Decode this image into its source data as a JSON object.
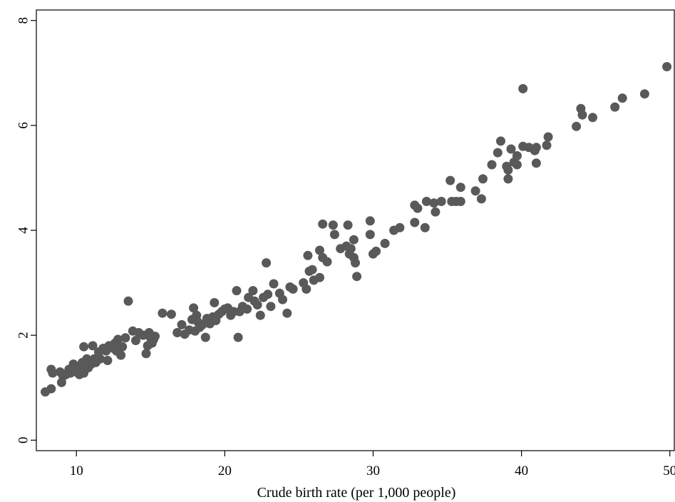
{
  "chart_data": {
    "type": "scatter",
    "title": "",
    "xlabel": "Crude birth rate (per 1,000 people)",
    "ylabel": "",
    "xlim": [
      7.3,
      50.3
    ],
    "ylim": [
      -0.2,
      8.2
    ],
    "xticks": [
      10,
      20,
      30,
      40,
      50
    ],
    "yticks": [
      0,
      2,
      4,
      6,
      8
    ],
    "grid": false,
    "marker_color": "#595959",
    "points": [
      [
        7.9,
        0.92
      ],
      [
        8.3,
        0.98
      ],
      [
        8.3,
        1.35
      ],
      [
        8.4,
        1.28
      ],
      [
        8.9,
        1.3
      ],
      [
        9.0,
        1.1
      ],
      [
        9.1,
        1.22
      ],
      [
        9.3,
        1.25
      ],
      [
        9.5,
        1.35
      ],
      [
        9.6,
        1.28
      ],
      [
        9.8,
        1.45
      ],
      [
        9.9,
        1.38
      ],
      [
        10.0,
        1.3
      ],
      [
        10.1,
        1.4
      ],
      [
        10.2,
        1.25
      ],
      [
        10.3,
        1.35
      ],
      [
        10.4,
        1.48
      ],
      [
        10.5,
        1.28
      ],
      [
        10.5,
        1.78
      ],
      [
        10.6,
        1.42
      ],
      [
        10.7,
        1.55
      ],
      [
        10.8,
        1.38
      ],
      [
        10.9,
        1.5
      ],
      [
        11.0,
        1.45
      ],
      [
        11.1,
        1.8
      ],
      [
        11.2,
        1.55
      ],
      [
        11.3,
        1.48
      ],
      [
        11.5,
        1.68
      ],
      [
        11.6,
        1.55
      ],
      [
        11.8,
        1.75
      ],
      [
        12.0,
        1.7
      ],
      [
        12.1,
        1.52
      ],
      [
        12.2,
        1.8
      ],
      [
        12.5,
        1.75
      ],
      [
        12.6,
        1.85
      ],
      [
        12.7,
        1.7
      ],
      [
        12.8,
        1.92
      ],
      [
        13.0,
        1.62
      ],
      [
        13.1,
        1.78
      ],
      [
        13.3,
        1.95
      ],
      [
        13.5,
        2.65
      ],
      [
        13.8,
        2.08
      ],
      [
        14.0,
        1.9
      ],
      [
        14.2,
        2.05
      ],
      [
        14.5,
        2.0
      ],
      [
        14.7,
        1.65
      ],
      [
        14.8,
        1.8
      ],
      [
        14.9,
        2.05
      ],
      [
        15.0,
        1.95
      ],
      [
        15.1,
        1.85
      ],
      [
        15.2,
        1.92
      ],
      [
        15.3,
        1.98
      ],
      [
        15.8,
        2.42
      ],
      [
        16.4,
        2.4
      ],
      [
        16.8,
        2.05
      ],
      [
        17.1,
        2.2
      ],
      [
        17.3,
        2.02
      ],
      [
        17.6,
        2.1
      ],
      [
        17.8,
        2.3
      ],
      [
        17.9,
        2.52
      ],
      [
        18.0,
        2.08
      ],
      [
        18.1,
        2.38
      ],
      [
        18.2,
        2.25
      ],
      [
        18.3,
        2.15
      ],
      [
        18.5,
        2.2
      ],
      [
        18.7,
        1.96
      ],
      [
        18.8,
        2.32
      ],
      [
        19.0,
        2.22
      ],
      [
        19.2,
        2.35
      ],
      [
        19.3,
        2.62
      ],
      [
        19.4,
        2.28
      ],
      [
        19.6,
        2.4
      ],
      [
        19.8,
        2.45
      ],
      [
        20.0,
        2.5
      ],
      [
        20.2,
        2.52
      ],
      [
        20.4,
        2.38
      ],
      [
        20.6,
        2.45
      ],
      [
        20.8,
        2.85
      ],
      [
        20.9,
        1.96
      ],
      [
        21.0,
        2.45
      ],
      [
        21.2,
        2.55
      ],
      [
        21.5,
        2.5
      ],
      [
        21.6,
        2.72
      ],
      [
        21.9,
        2.85
      ],
      [
        22.0,
        2.65
      ],
      [
        22.2,
        2.58
      ],
      [
        22.4,
        2.38
      ],
      [
        22.6,
        2.72
      ],
      [
        22.8,
        3.38
      ],
      [
        22.9,
        2.78
      ],
      [
        23.1,
        2.55
      ],
      [
        23.3,
        2.98
      ],
      [
        23.7,
        2.8
      ],
      [
        23.9,
        2.68
      ],
      [
        24.2,
        2.42
      ],
      [
        24.4,
        2.92
      ],
      [
        24.6,
        2.88
      ],
      [
        25.3,
        3.0
      ],
      [
        25.5,
        2.88
      ],
      [
        25.6,
        3.52
      ],
      [
        25.7,
        3.22
      ],
      [
        25.9,
        3.25
      ],
      [
        26.0,
        3.05
      ],
      [
        26.4,
        3.1
      ],
      [
        26.4,
        3.62
      ],
      [
        26.6,
        3.48
      ],
      [
        26.6,
        4.12
      ],
      [
        26.9,
        3.4
      ],
      [
        27.3,
        4.1
      ],
      [
        27.4,
        3.92
      ],
      [
        27.8,
        3.65
      ],
      [
        28.2,
        3.7
      ],
      [
        28.3,
        4.1
      ],
      [
        28.4,
        3.55
      ],
      [
        28.5,
        3.65
      ],
      [
        28.7,
        3.82
      ],
      [
        28.7,
        3.48
      ],
      [
        28.8,
        3.38
      ],
      [
        28.9,
        3.12
      ],
      [
        29.8,
        4.18
      ],
      [
        29.8,
        3.92
      ],
      [
        30.0,
        3.55
      ],
      [
        30.2,
        3.6
      ],
      [
        30.8,
        3.75
      ],
      [
        31.4,
        4.0
      ],
      [
        31.8,
        4.05
      ],
      [
        32.8,
        4.15
      ],
      [
        32.8,
        4.48
      ],
      [
        33.0,
        4.42
      ],
      [
        33.5,
        4.05
      ],
      [
        33.6,
        4.55
      ],
      [
        34.1,
        4.52
      ],
      [
        34.2,
        4.35
      ],
      [
        34.6,
        4.55
      ],
      [
        35.2,
        4.95
      ],
      [
        35.3,
        4.55
      ],
      [
        35.6,
        4.55
      ],
      [
        35.9,
        4.55
      ],
      [
        35.9,
        4.82
      ],
      [
        36.9,
        4.75
      ],
      [
        37.3,
        4.6
      ],
      [
        37.4,
        4.98
      ],
      [
        38.0,
        5.25
      ],
      [
        38.4,
        5.48
      ],
      [
        38.6,
        5.7
      ],
      [
        39.0,
        5.22
      ],
      [
        39.1,
        5.15
      ],
      [
        39.1,
        4.98
      ],
      [
        39.3,
        5.55
      ],
      [
        39.5,
        5.3
      ],
      [
        39.7,
        5.42
      ],
      [
        39.7,
        5.25
      ],
      [
        40.1,
        6.7
      ],
      [
        40.1,
        5.6
      ],
      [
        40.5,
        5.58
      ],
      [
        40.9,
        5.52
      ],
      [
        41.0,
        5.28
      ],
      [
        41.0,
        5.58
      ],
      [
        41.7,
        5.62
      ],
      [
        41.8,
        5.78
      ],
      [
        43.7,
        5.98
      ],
      [
        44.0,
        6.32
      ],
      [
        44.1,
        6.2
      ],
      [
        44.8,
        6.15
      ],
      [
        46.3,
        6.35
      ],
      [
        46.8,
        6.52
      ],
      [
        48.3,
        6.6
      ],
      [
        49.8,
        7.12
      ]
    ]
  }
}
